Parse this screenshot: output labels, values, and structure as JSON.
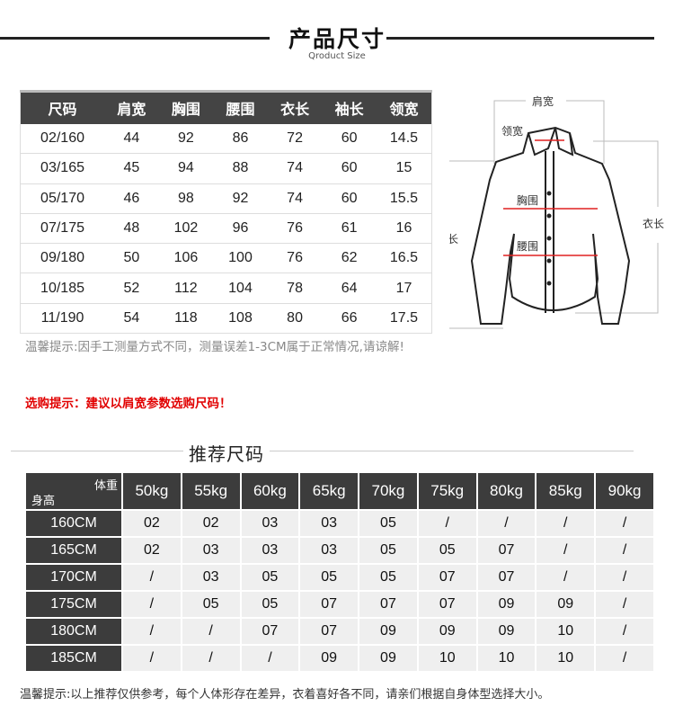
{
  "header": {
    "title": "产品尺寸",
    "subtitle": "Qroduct Size"
  },
  "size_table": {
    "columns": [
      "尺码",
      "肩宽",
      "胸围",
      "腰围",
      "衣长",
      "袖长",
      "领宽"
    ],
    "rows": [
      [
        "02/160",
        "44",
        "92",
        "86",
        "72",
        "60",
        "14.5"
      ],
      [
        "03/165",
        "45",
        "94",
        "88",
        "74",
        "60",
        "15"
      ],
      [
        "05/170",
        "46",
        "98",
        "92",
        "74",
        "60",
        "15.5"
      ],
      [
        "07/175",
        "48",
        "102",
        "96",
        "76",
        "61",
        "16"
      ],
      [
        "09/180",
        "50",
        "106",
        "100",
        "76",
        "62",
        "16.5"
      ],
      [
        "10/185",
        "52",
        "112",
        "104",
        "78",
        "64",
        "17"
      ],
      [
        "11/190",
        "54",
        "118",
        "108",
        "80",
        "66",
        "17.5"
      ]
    ]
  },
  "diagram": {
    "labels": {
      "shoulder": "肩宽",
      "collar": "领宽",
      "chest": "胸围",
      "waist": "腰围",
      "sleeve": "袖长",
      "length": "衣长"
    },
    "measure_line_color": "#e02020"
  },
  "notes": {
    "measurement": "温馨提示:因手工测量方式不同，测量误差1-3CM属于正常情况,请谅解!",
    "purchase": "选购提示：建议以肩宽参数选购尺码！"
  },
  "recommend": {
    "title": "推荐尺码",
    "corner_weight": "体重",
    "corner_height": "身高",
    "weights": [
      "50kg",
      "55kg",
      "60kg",
      "65kg",
      "70kg",
      "75kg",
      "80kg",
      "85kg",
      "90kg"
    ],
    "rows": [
      {
        "height": "160CM",
        "sizes": [
          "02",
          "02",
          "03",
          "03",
          "05",
          "/",
          "/",
          "/",
          "/"
        ]
      },
      {
        "height": "165CM",
        "sizes": [
          "02",
          "03",
          "03",
          "03",
          "05",
          "05",
          "07",
          "/",
          "/"
        ]
      },
      {
        "height": "170CM",
        "sizes": [
          "/",
          "03",
          "05",
          "05",
          "05",
          "07",
          "07",
          "/",
          "/"
        ]
      },
      {
        "height": "175CM",
        "sizes": [
          "/",
          "05",
          "05",
          "07",
          "07",
          "07",
          "09",
          "09",
          "/"
        ]
      },
      {
        "height": "180CM",
        "sizes": [
          "/",
          "/",
          "07",
          "07",
          "09",
          "09",
          "09",
          "10",
          "/"
        ]
      },
      {
        "height": "185CM",
        "sizes": [
          "/",
          "/",
          "/",
          "09",
          "09",
          "10",
          "10",
          "10",
          "/"
        ]
      }
    ]
  },
  "footer": "温馨提示:以上推荐仅供参考，每个人体形存在差异，衣着喜好各不同，请亲们根据自身体型选择大小。"
}
